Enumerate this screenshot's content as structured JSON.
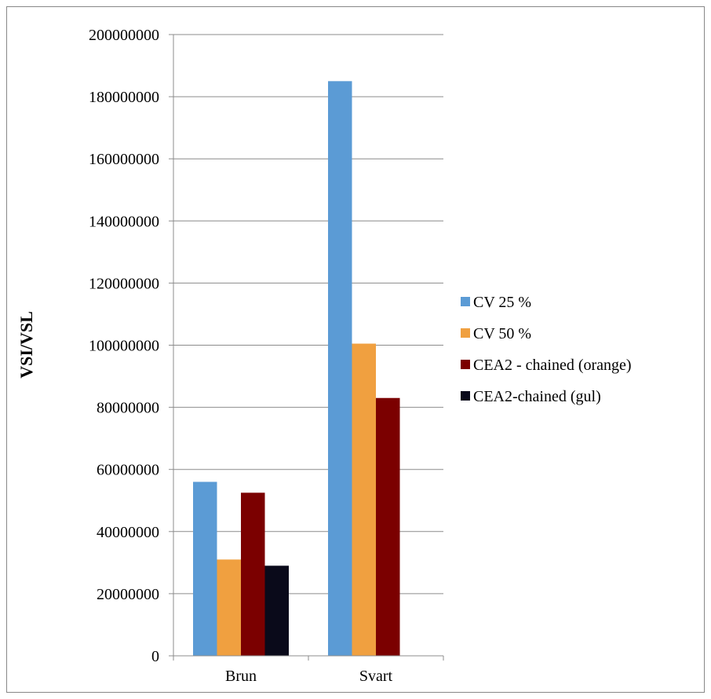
{
  "chart_data": {
    "type": "bar",
    "title": "",
    "xlabel": "",
    "ylabel": "VSI/VSL",
    "categories": [
      "Brun",
      "Svart"
    ],
    "ylim": [
      0,
      200000000
    ],
    "yticks": [
      0,
      20000000,
      40000000,
      60000000,
      80000000,
      100000000,
      120000000,
      140000000,
      160000000,
      180000000,
      200000000
    ],
    "ytick_labels": [
      "0",
      "20000000",
      "40000000",
      "60000000",
      "80000000",
      "100000000",
      "120000000",
      "140000000",
      "160000000",
      "180000000",
      "200000000"
    ],
    "grid": true,
    "legend_position": "right",
    "series": [
      {
        "name": "CV 25 %",
        "color": "#5b9bd5",
        "values": [
          56000000,
          185000000
        ]
      },
      {
        "name": "CV 50 %",
        "color": "#f0a040",
        "values": [
          31000000,
          100500000
        ]
      },
      {
        "name": "CEA2 - chained (orange)",
        "color": "#7b0000",
        "values": [
          52500000,
          83000000
        ]
      },
      {
        "name": "CEA2-chained (gul)",
        "color": "#0a0a1a",
        "values": [
          29000000,
          null
        ]
      }
    ]
  }
}
